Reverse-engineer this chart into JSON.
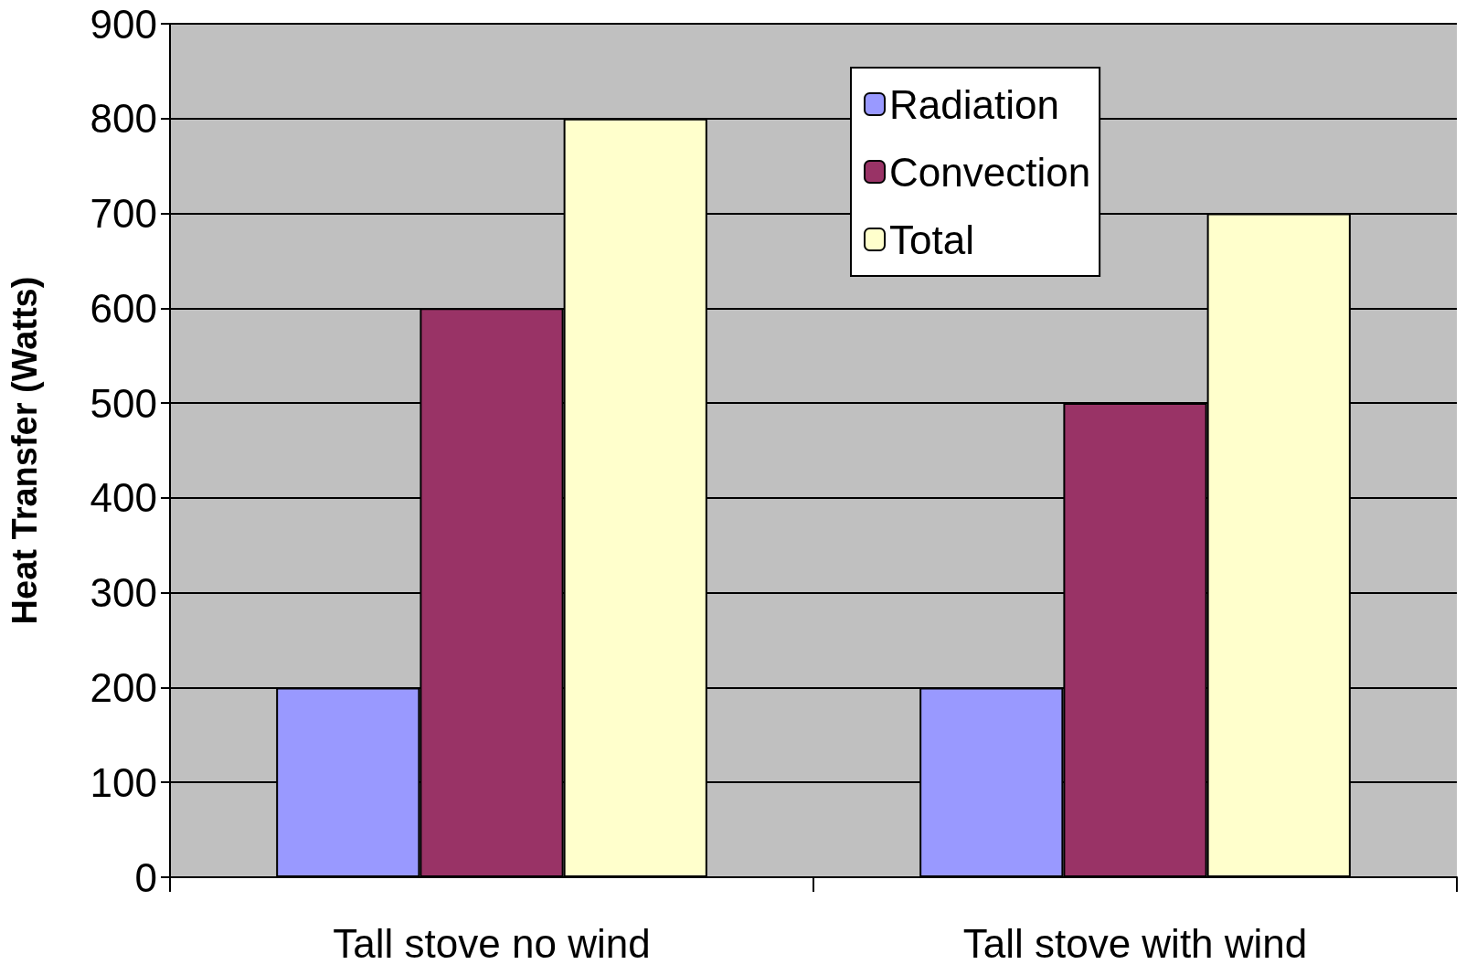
{
  "chart_data": {
    "type": "bar",
    "ylabel": "Heat Transfer (Watts)",
    "categories": [
      "Tall stove no wind",
      "Tall stove with wind"
    ],
    "series": [
      {
        "name": "Radiation",
        "color": "#9999ff",
        "values": [
          200,
          200
        ]
      },
      {
        "name": "Convection",
        "color": "#993366",
        "values": [
          600,
          500
        ]
      },
      {
        "name": "Total",
        "color": "#ffffcc",
        "values": [
          800,
          700
        ]
      }
    ],
    "ylim": [
      0,
      900
    ],
    "yticks": [
      0,
      100,
      200,
      300,
      400,
      500,
      600,
      700,
      800,
      900
    ],
    "grid": "y",
    "legend": "top right"
  }
}
